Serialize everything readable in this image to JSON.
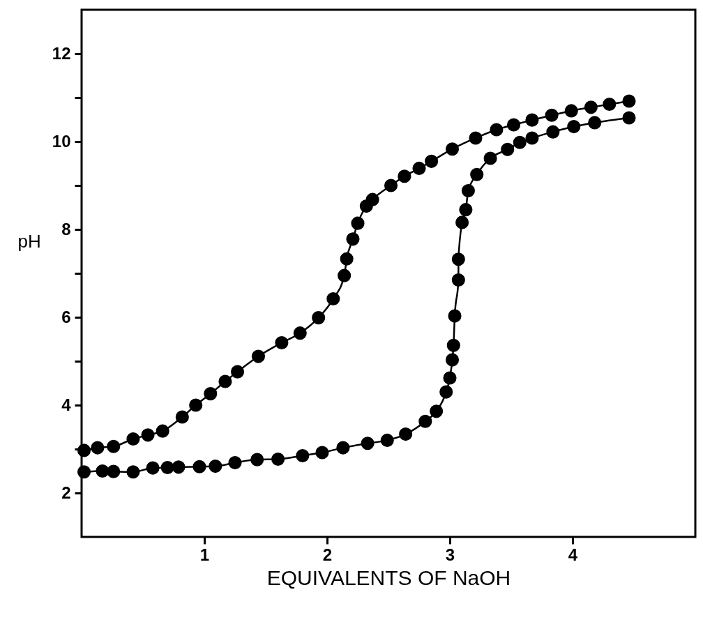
{
  "chart_data": {
    "type": "line",
    "xlabel": "EQUIVALENTS OF NaOH",
    "ylabel": "pH",
    "xlim": [
      0,
      5
    ],
    "ylim": [
      1,
      13
    ],
    "xticks": [
      1,
      2,
      3,
      4
    ],
    "yticks": [
      2,
      {
        "value": 3,
        "label": null
      },
      4,
      {
        "value": 5,
        "label": null
      },
      6,
      {
        "value": 7,
        "label": null
      },
      8,
      {
        "value": 9,
        "label": null
      },
      10,
      {
        "value": 11,
        "label": null
      },
      12
    ],
    "grid": false,
    "marker": "circle",
    "line_style": "solid",
    "series": [
      {
        "color": "#000000",
        "x": [
          0.02,
          0.13,
          0.26,
          0.42,
          0.54,
          0.66,
          0.82,
          0.93,
          1.05,
          1.17,
          1.27,
          1.44,
          1.63,
          1.78,
          1.93,
          2.05,
          2.14,
          2.16,
          2.21,
          2.25,
          2.32,
          2.37,
          2.52,
          2.63,
          2.75,
          2.85,
          3.02,
          3.21,
          3.38,
          3.52,
          3.67,
          3.83,
          3.99,
          4.15,
          4.3,
          4.46
        ],
        "values": [
          2.97,
          3.03,
          3.06,
          3.23,
          3.32,
          3.41,
          3.73,
          4.0,
          4.26,
          4.54,
          4.76,
          5.11,
          5.42,
          5.64,
          5.99,
          6.42,
          6.95,
          7.33,
          7.78,
          8.14,
          8.53,
          8.68,
          9.0,
          9.21,
          9.39,
          9.55,
          9.83,
          10.08,
          10.27,
          10.38,
          10.49,
          10.6,
          10.7,
          10.78,
          10.85,
          10.92
        ]
      },
      {
        "color": "#000000",
        "x": [
          0.02,
          0.17,
          0.26,
          0.42,
          0.58,
          0.7,
          0.79,
          0.96,
          1.09,
          1.25,
          1.43,
          1.6,
          1.8,
          1.96,
          2.13,
          2.33,
          2.49,
          2.64,
          2.8,
          2.89,
          2.97,
          3.0,
          3.02,
          3.03,
          3.04,
          3.07,
          3.07,
          3.1,
          3.13,
          3.15,
          3.22,
          3.33,
          3.47,
          3.57,
          3.67,
          3.84,
          4.01,
          4.18,
          4.46
        ],
        "values": [
          2.48,
          2.5,
          2.49,
          2.48,
          2.57,
          2.58,
          2.59,
          2.6,
          2.61,
          2.69,
          2.76,
          2.77,
          2.85,
          2.92,
          3.03,
          3.13,
          3.2,
          3.34,
          3.63,
          3.86,
          4.3,
          4.62,
          5.03,
          5.36,
          6.03,
          6.85,
          7.32,
          8.16,
          8.45,
          8.88,
          9.25,
          9.62,
          9.82,
          9.98,
          10.08,
          10.22,
          10.34,
          10.43,
          10.54
        ]
      }
    ]
  }
}
